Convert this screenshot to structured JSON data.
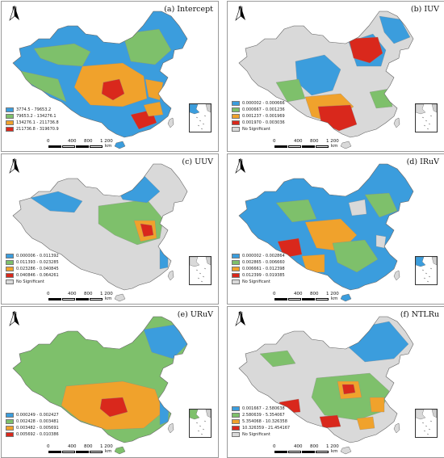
{
  "colors": {
    "c1": "#3b9ddd",
    "c2": "#7ec06b",
    "c3": "#f0a22c",
    "c4": "#d9281c",
    "ns": "#d9d9d9"
  },
  "north_label": "N",
  "scale": {
    "ticks": [
      "0",
      "400",
      "800",
      "1 200"
    ],
    "unit": "km"
  },
  "panels": [
    {
      "id": "a",
      "title": "(a) Intercept",
      "legend": [
        {
          "label": "3774.5 - 79653.2",
          "color": "c1"
        },
        {
          "label": "79653.2 - 134276.1",
          "color": "c2"
        },
        {
          "label": "134276.1 - 211736.8",
          "color": "c3"
        },
        {
          "label": "211736.8 - 319670.9",
          "color": "c4"
        }
      ]
    },
    {
      "id": "b",
      "title": "(b) IUV",
      "legend": [
        {
          "label": "0.000002 - 0.000666",
          "color": "c1"
        },
        {
          "label": "0.000667 - 0.001236",
          "color": "c2"
        },
        {
          "label": "0.001237 - 0.001969",
          "color": "c3"
        },
        {
          "label": "0.001970 - 0.003036",
          "color": "c4"
        },
        {
          "label": "No Significant",
          "color": "ns"
        }
      ]
    },
    {
      "id": "c",
      "title": "(c) UUV",
      "legend": [
        {
          "label": "0.000006 - 0.011392",
          "color": "c1"
        },
        {
          "label": "0.011393 - 0.023285",
          "color": "c2"
        },
        {
          "label": "0.023286 - 0.040845",
          "color": "c3"
        },
        {
          "label": "0.040846 - 0.064261",
          "color": "c4"
        },
        {
          "label": "No Significant",
          "color": "ns"
        }
      ]
    },
    {
      "id": "d",
      "title": "(d) IRuV",
      "legend": [
        {
          "label": "0.000002 - 0.002864",
          "color": "c1"
        },
        {
          "label": "0.002865 - 0.006660",
          "color": "c2"
        },
        {
          "label": "0.006661 - 0.012398",
          "color": "c3"
        },
        {
          "label": "0.012399 - 0.019385",
          "color": "c4"
        },
        {
          "label": "No Significant",
          "color": "ns"
        }
      ]
    },
    {
      "id": "e",
      "title": "(e) URuV",
      "legend": [
        {
          "label": "0.000249 - 0.002427",
          "color": "c1"
        },
        {
          "label": "0.002428 - 0.003481",
          "color": "c2"
        },
        {
          "label": "0.003482 - 0.005691",
          "color": "c3"
        },
        {
          "label": "0.005692 - 0.010386",
          "color": "c4"
        }
      ]
    },
    {
      "id": "f",
      "title": "(f) NTLRu",
      "legend": [
        {
          "label": "0.001667 - 2.580638",
          "color": "c1"
        },
        {
          "label": "2.580639 - 5.354067",
          "color": "c2"
        },
        {
          "label": "5.354068 - 10.326358",
          "color": "c3"
        },
        {
          "label": "10.326359 - 21.454167",
          "color": "c4"
        },
        {
          "label": "No Significant",
          "color": "ns"
        }
      ]
    }
  ]
}
